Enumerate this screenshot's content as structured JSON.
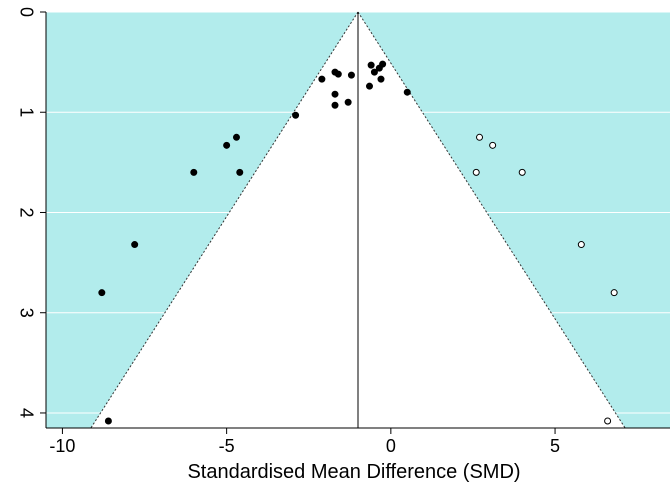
{
  "chart_data": {
    "type": "scatter",
    "title": "",
    "xlabel": "Standardised Mean Difference (SMD)",
    "ylabel": "",
    "xlim": [
      -10.5,
      8.5
    ],
    "ylim": [
      0,
      4.15
    ],
    "y_reversed": true,
    "x_ticks": [
      -10,
      -5,
      0,
      5
    ],
    "x_tick_labels": [
      "-10",
      "-5",
      "0",
      "5"
    ],
    "y_ticks": [
      0,
      1,
      2,
      3,
      4
    ],
    "y_tick_labels": [
      "0",
      "1",
      "2",
      "3",
      "4"
    ],
    "grid": "horizontal",
    "colors": {
      "background": "#b2ecec",
      "funnel": "#ffffff",
      "observed": "#000000",
      "imputed": "#ffffff"
    },
    "funnel": {
      "center": -1.0,
      "apex_se": 0,
      "slope": 1.96
    },
    "reference_line_x": -1.0,
    "series": [
      {
        "kind": "observed",
        "points": [
          [
            -8.6,
            4.08
          ],
          [
            -8.8,
            2.8
          ],
          [
            -7.8,
            2.32
          ],
          [
            -6.0,
            1.6
          ],
          [
            -4.6,
            1.6
          ],
          [
            -5.0,
            1.33
          ],
          [
            -4.7,
            1.25
          ],
          [
            -2.9,
            1.03
          ],
          [
            -2.1,
            0.67
          ],
          [
            -1.6,
            0.62
          ],
          [
            -1.7,
            0.6
          ],
          [
            -1.2,
            0.63
          ],
          [
            -1.7,
            0.82
          ],
          [
            -1.7,
            0.93
          ],
          [
            -1.3,
            0.9
          ],
          [
            -0.6,
            0.53
          ],
          [
            -0.5,
            0.6
          ],
          [
            -0.35,
            0.56
          ],
          [
            -0.25,
            0.52
          ],
          [
            -0.3,
            0.67
          ],
          [
            -0.65,
            0.74
          ],
          [
            0.5,
            0.8
          ]
        ]
      },
      {
        "kind": "imputed",
        "points": [
          [
            2.7,
            1.25
          ],
          [
            3.1,
            1.33
          ],
          [
            2.6,
            1.6
          ],
          [
            4.0,
            1.6
          ],
          [
            5.8,
            2.32
          ],
          [
            6.8,
            2.8
          ],
          [
            6.6,
            4.08
          ]
        ]
      }
    ]
  }
}
